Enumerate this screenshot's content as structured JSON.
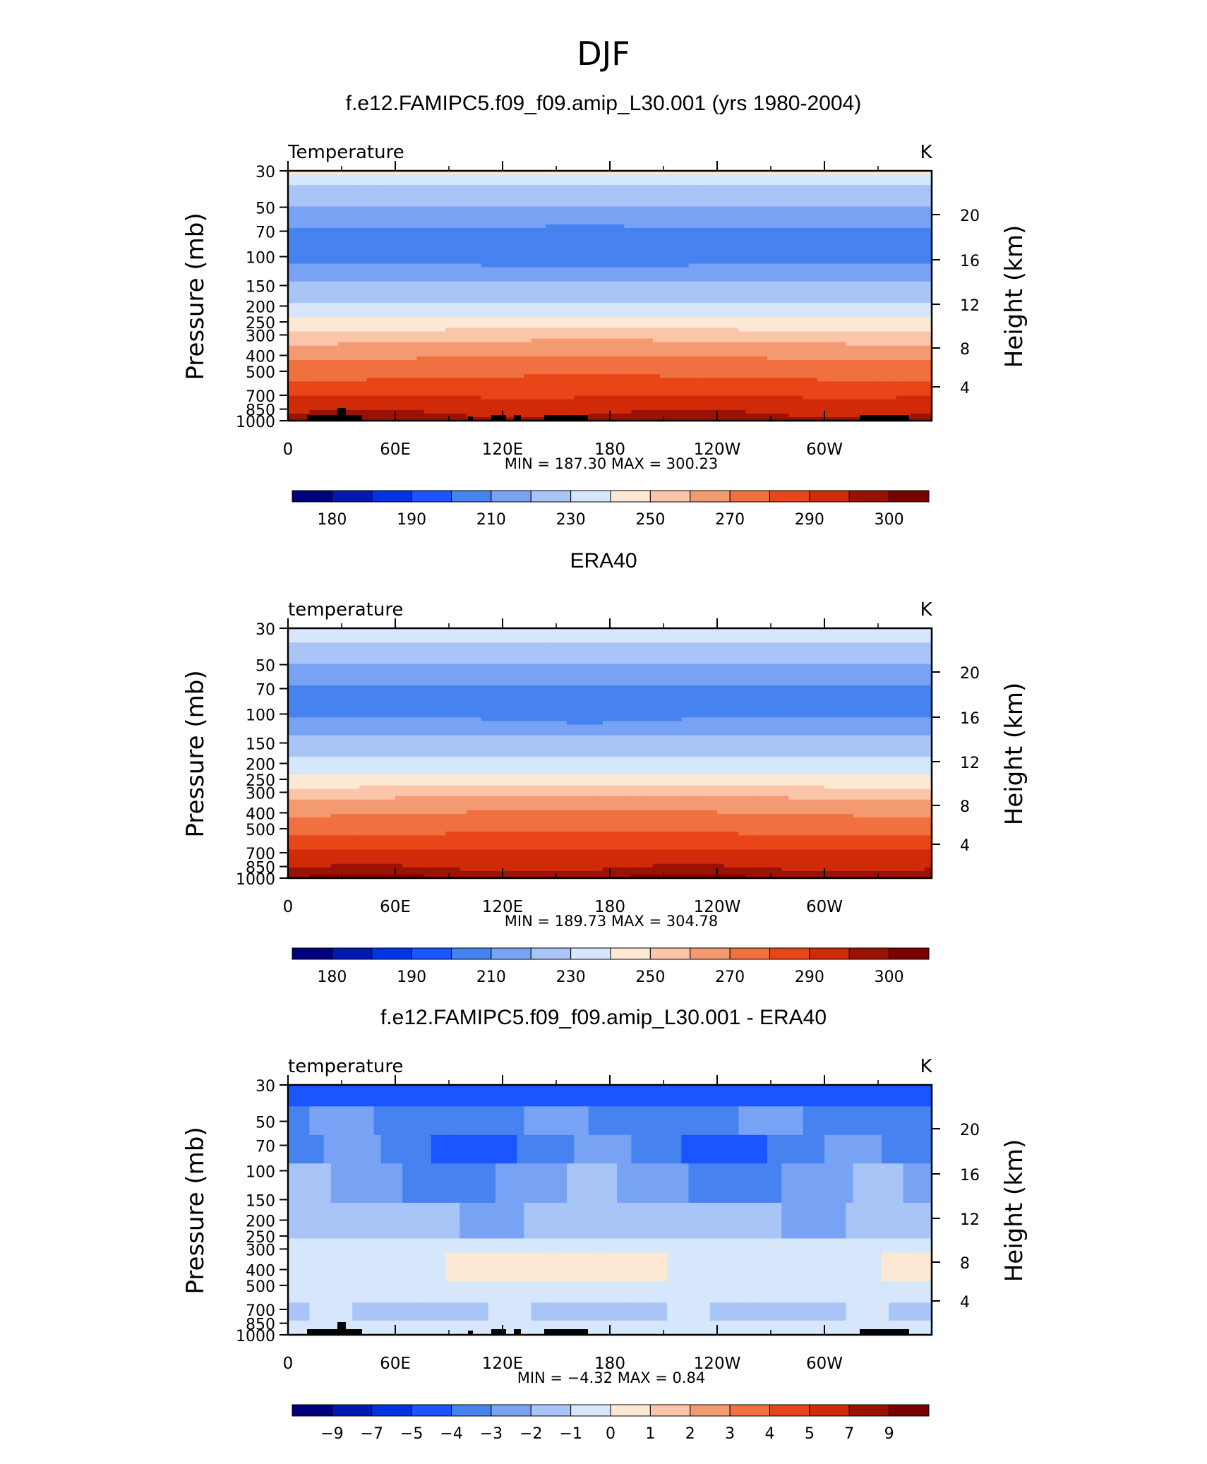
{
  "page_title": "DJF",
  "axes_common": {
    "ylabel_left": "Pressure (mb)",
    "ylabel_right": "Height (km)",
    "pressure_ticks": [
      "30",
      "50",
      "70",
      "100",
      "150",
      "200",
      "250",
      "300",
      "400",
      "500",
      "700",
      "850",
      "1000"
    ],
    "height_ticks": [
      "20",
      "16",
      "12",
      "8",
      "4"
    ],
    "lon_ticks": [
      "0",
      "60E",
      "120E",
      "180",
      "120W",
      "60W"
    ]
  },
  "colors": {
    "abs_scale": [
      "#00007f",
      "#0019b2",
      "#0033e5",
      "#1a55ff",
      "#4682f0",
      "#78a3f5",
      "#a9c5f7",
      "#d6e6fb",
      "#fde8d4",
      "#fac5a8",
      "#f49a70",
      "#f0703f",
      "#e84518",
      "#d12a08",
      "#9a1205",
      "#7a0000"
    ],
    "diff_scale": [
      "#00007f",
      "#0019b2",
      "#0033e5",
      "#1a55ff",
      "#4682f0",
      "#78a3f5",
      "#a9c5f7",
      "#d6e6fb",
      "#fde8d4",
      "#fac5a8",
      "#f49a70",
      "#f0703f",
      "#e84518",
      "#d12a08",
      "#9a1205",
      "#7a0000"
    ],
    "topography": "#000000"
  },
  "chart_data": [
    {
      "type": "heatmap",
      "title": "f.e12.FAMIPC5.f09_f09.amip_L30.001 (yrs 1980-2004)",
      "left_string": "Temperature",
      "units": "K",
      "stats": "MIN =  187.30   MAX =  300.23",
      "min": 187.3,
      "max": 300.23,
      "x": "longitude 0-360",
      "y": "pressure (mb) 1000-30",
      "colorbar_labels": [
        "180",
        "190",
        "210",
        "230",
        "250",
        "270",
        "290",
        "300"
      ],
      "levels": [
        175,
        180,
        185,
        190,
        200,
        210,
        220,
        230,
        240,
        250,
        260,
        270,
        280,
        290,
        295,
        300
      ],
      "profile_pressure": [
        30,
        40,
        50,
        70,
        100,
        150,
        200,
        250,
        300,
        400,
        500,
        700,
        850,
        1000
      ],
      "profile_temp": [
        232,
        215,
        210,
        198,
        196,
        213,
        222,
        232,
        245,
        259,
        266,
        280,
        288,
        293
      ]
    },
    {
      "type": "heatmap",
      "title": "ERA40",
      "left_string": "temperature",
      "units": "K",
      "stats": "MIN =  189.73   MAX =  304.78",
      "min": 189.73,
      "max": 304.78,
      "x": "longitude 0-360",
      "y": "pressure (mb) 1000-30",
      "colorbar_labels": [
        "180",
        "190",
        "210",
        "230",
        "250",
        "270",
        "290",
        "300"
      ],
      "levels": [
        175,
        180,
        185,
        190,
        200,
        210,
        220,
        230,
        240,
        250,
        260,
        270,
        280,
        290,
        295,
        300
      ],
      "profile_pressure": [
        30,
        40,
        50,
        70,
        100,
        150,
        200,
        250,
        300,
        400,
        500,
        700,
        850,
        1000
      ],
      "profile_temp": [
        231,
        214,
        210,
        199,
        199,
        214,
        223,
        232,
        247,
        260,
        267,
        281,
        289,
        295
      ]
    },
    {
      "type": "heatmap",
      "title": "f.e12.FAMIPC5.f09_f09.amip_L30.001 - ERA40",
      "left_string": "temperature",
      "units": "K",
      "stats": "MIN =   −4.32   MAX =     0.84",
      "min": -4.32,
      "max": 0.84,
      "x": "longitude 0-360",
      "y": "pressure (mb) 1000-30",
      "colorbar_labels": [
        "−9",
        "−7",
        "−5",
        "−4",
        "−3",
        "−2",
        "−1",
        "0",
        "1",
        "2",
        "3",
        "4",
        "5",
        "7",
        "9"
      ],
      "levels": [
        -9,
        -7,
        -5,
        -4,
        -3,
        -2,
        -1,
        0,
        1,
        2,
        3,
        4,
        5,
        7,
        9
      ]
    }
  ]
}
